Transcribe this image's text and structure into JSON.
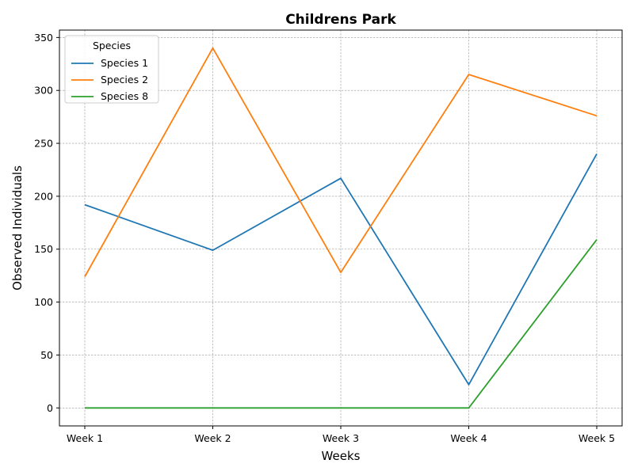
{
  "chart_data": {
    "type": "line",
    "title": "Childrens Park",
    "xlabel": "Weeks",
    "ylabel": "Observed Individuals",
    "categories": [
      "Week 1",
      "Week 2",
      "Week 3",
      "Week 4",
      "Week 5"
    ],
    "series": [
      {
        "name": "Species 1",
        "color": "#1f77b4",
        "values": [
          192,
          149,
          217,
          22,
          240
        ]
      },
      {
        "name": "Species 2",
        "color": "#ff7f0e",
        "values": [
          124,
          340,
          128,
          315,
          276
        ]
      },
      {
        "name": "Species 8",
        "color": "#2ca02c",
        "values": [
          0,
          0,
          0,
          0,
          159
        ]
      }
    ],
    "ylim": [
      -17,
      357
    ],
    "yticks": [
      0,
      50,
      100,
      150,
      200,
      250,
      300,
      350
    ],
    "grid": true,
    "legend": {
      "title": "Species",
      "position": "top-left"
    }
  }
}
